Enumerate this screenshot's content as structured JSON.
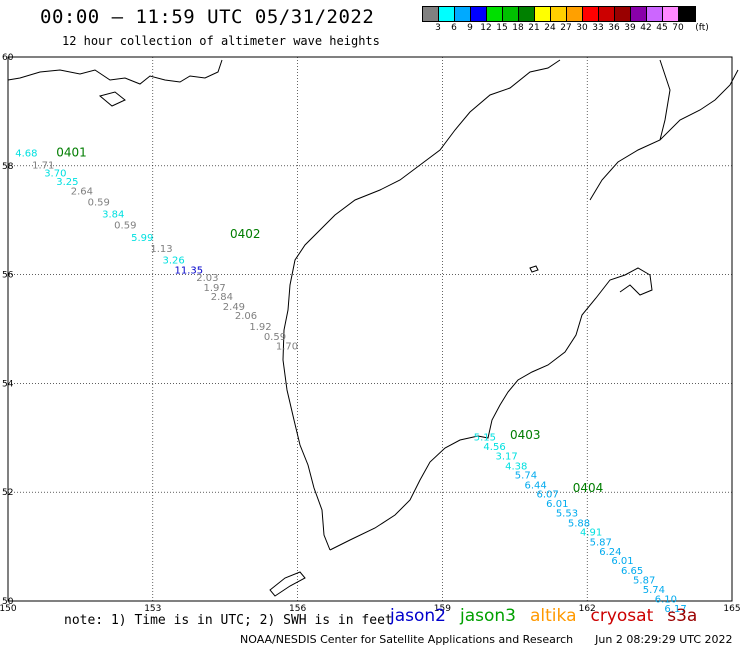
{
  "title": "00:00 — 11:59 UTC 05/31/2022",
  "subtitle": "12 hour collection of altimeter wave heights",
  "legend": {
    "unit": "(ft)",
    "swatches": [
      {
        "color": "#808080",
        "label": "3"
      },
      {
        "color": "#00ffff",
        "label": "6"
      },
      {
        "color": "#00aaff",
        "label": "9"
      },
      {
        "color": "#0000ff",
        "label": "12"
      },
      {
        "color": "#00e000",
        "label": "15"
      },
      {
        "color": "#00c000",
        "label": "18"
      },
      {
        "color": "#008000",
        "label": "21"
      },
      {
        "color": "#ffff00",
        "label": "24"
      },
      {
        "color": "#ffd000",
        "label": "27"
      },
      {
        "color": "#ffa000",
        "label": "30"
      },
      {
        "color": "#ff0000",
        "label": "33"
      },
      {
        "color": "#cc0000",
        "label": "36"
      },
      {
        "color": "#990000",
        "label": "39"
      },
      {
        "color": "#8800aa",
        "label": "42"
      },
      {
        "color": "#cc66ff",
        "label": "45"
      },
      {
        "color": "#ff88ff",
        "label": "70"
      },
      {
        "color": "#000000",
        "label": ""
      }
    ]
  },
  "map": {
    "lat_labels": [
      "60",
      "58",
      "56",
      "54",
      "52",
      "50"
    ],
    "lon_labels": [
      "150",
      "153",
      "156",
      "159",
      "162",
      "165"
    ],
    "segments": [
      {
        "id": "0401",
        "lon": 151.0,
        "lat": 58.17
      },
      {
        "id": "0402",
        "lon": 154.6,
        "lat": 56.67
      },
      {
        "id": "0403",
        "lon": 160.4,
        "lat": 52.98
      },
      {
        "id": "0404",
        "lon": 161.7,
        "lat": 52.0
      }
    ],
    "wave_heights": [
      {
        "v": "4.68",
        "lon": 150.15,
        "lat": 58.17,
        "c": "#00e0e0"
      },
      {
        "v": "1.71",
        "lon": 150.5,
        "lat": 57.95,
        "c": "#808080"
      },
      {
        "v": "3.70",
        "lon": 150.75,
        "lat": 57.8,
        "c": "#00e0e0"
      },
      {
        "v": "3.25",
        "lon": 151.0,
        "lat": 57.65,
        "c": "#00e0e0"
      },
      {
        "v": "2.64",
        "lon": 151.3,
        "lat": 57.47,
        "c": "#808080"
      },
      {
        "v": "0.59",
        "lon": 151.65,
        "lat": 57.27,
        "c": "#808080"
      },
      {
        "v": "3.84",
        "lon": 151.95,
        "lat": 57.05,
        "c": "#00e0e0"
      },
      {
        "v": "0.59",
        "lon": 152.2,
        "lat": 56.85,
        "c": "#808080"
      },
      {
        "v": "5.99",
        "lon": 152.55,
        "lat": 56.62,
        "c": "#00e0e0"
      },
      {
        "v": "1.13",
        "lon": 152.95,
        "lat": 56.42,
        "c": "#808080"
      },
      {
        "v": "3.26",
        "lon": 153.2,
        "lat": 56.2,
        "c": "#00e0e0"
      },
      {
        "v": "11.35",
        "lon": 153.45,
        "lat": 56.02,
        "c": "#0000cc"
      },
      {
        "v": "2.03",
        "lon": 153.9,
        "lat": 55.88,
        "c": "#808080"
      },
      {
        "v": "1.97",
        "lon": 154.05,
        "lat": 55.7,
        "c": "#808080"
      },
      {
        "v": "2.84",
        "lon": 154.2,
        "lat": 55.53,
        "c": "#808080"
      },
      {
        "v": "2.49",
        "lon": 154.45,
        "lat": 55.35,
        "c": "#808080"
      },
      {
        "v": "2.06",
        "lon": 154.7,
        "lat": 55.18,
        "c": "#808080"
      },
      {
        "v": "1.92",
        "lon": 155.0,
        "lat": 54.98,
        "c": "#808080"
      },
      {
        "v": "0.59",
        "lon": 155.3,
        "lat": 54.8,
        "c": "#808080"
      },
      {
        "v": "1.70",
        "lon": 155.55,
        "lat": 54.62,
        "c": "#808080"
      },
      {
        "v": "5.15",
        "lon": 159.65,
        "lat": 52.95,
        "c": "#00e0e0"
      },
      {
        "v": "4.56",
        "lon": 159.85,
        "lat": 52.78,
        "c": "#00e0e0"
      },
      {
        "v": "3.17",
        "lon": 160.1,
        "lat": 52.6,
        "c": "#00e0e0"
      },
      {
        "v": "4.38",
        "lon": 160.3,
        "lat": 52.42,
        "c": "#00e0e0"
      },
      {
        "v": "5.74",
        "lon": 160.5,
        "lat": 52.25,
        "c": "#00aaee"
      },
      {
        "v": "6.44",
        "lon": 160.7,
        "lat": 52.07,
        "c": "#00aaee"
      },
      {
        "v": "6.07",
        "lon": 160.95,
        "lat": 51.9,
        "c": "#00aaee"
      },
      {
        "v": "6.01",
        "lon": 161.15,
        "lat": 51.73,
        "c": "#00aaee"
      },
      {
        "v": "5.53",
        "lon": 161.35,
        "lat": 51.55,
        "c": "#00aaee"
      },
      {
        "v": "5.88",
        "lon": 161.6,
        "lat": 51.37,
        "c": "#00aaee"
      },
      {
        "v": "4.91",
        "lon": 161.85,
        "lat": 51.2,
        "c": "#00e0e0"
      },
      {
        "v": "5.87",
        "lon": 162.05,
        "lat": 51.02,
        "c": "#00aaee"
      },
      {
        "v": "6.24",
        "lon": 162.25,
        "lat": 50.85,
        "c": "#00aaee"
      },
      {
        "v": "6.01",
        "lon": 162.5,
        "lat": 50.68,
        "c": "#00aaee"
      },
      {
        "v": "6.65",
        "lon": 162.7,
        "lat": 50.5,
        "c": "#00aaee"
      },
      {
        "v": "5.87",
        "lon": 162.95,
        "lat": 50.32,
        "c": "#00aaee"
      },
      {
        "v": "5.74",
        "lon": 163.15,
        "lat": 50.15,
        "c": "#00aaee"
      },
      {
        "v": "6.10",
        "lon": 163.4,
        "lat": 49.97,
        "c": "#00aaee"
      },
      {
        "v": "6.17",
        "lon": 163.6,
        "lat": 49.8,
        "c": "#00aaee"
      }
    ]
  },
  "note": "note: 1) Time is in UTC; 2) SWH is in feet",
  "satellites": [
    {
      "name": "jason2",
      "color": "#0000cc"
    },
    {
      "name": "jason3",
      "color": "#00a000"
    },
    {
      "name": "altika",
      "color": "#ff9900"
    },
    {
      "name": "cryosat",
      "color": "#cc0000"
    },
    {
      "name": "s3a",
      "color": "#990000"
    }
  ],
  "credit": "NOAA/NESDIS Center for Satellite Applications and Research",
  "timestamp": "Jun  2 08:29:29 UTC 2022"
}
